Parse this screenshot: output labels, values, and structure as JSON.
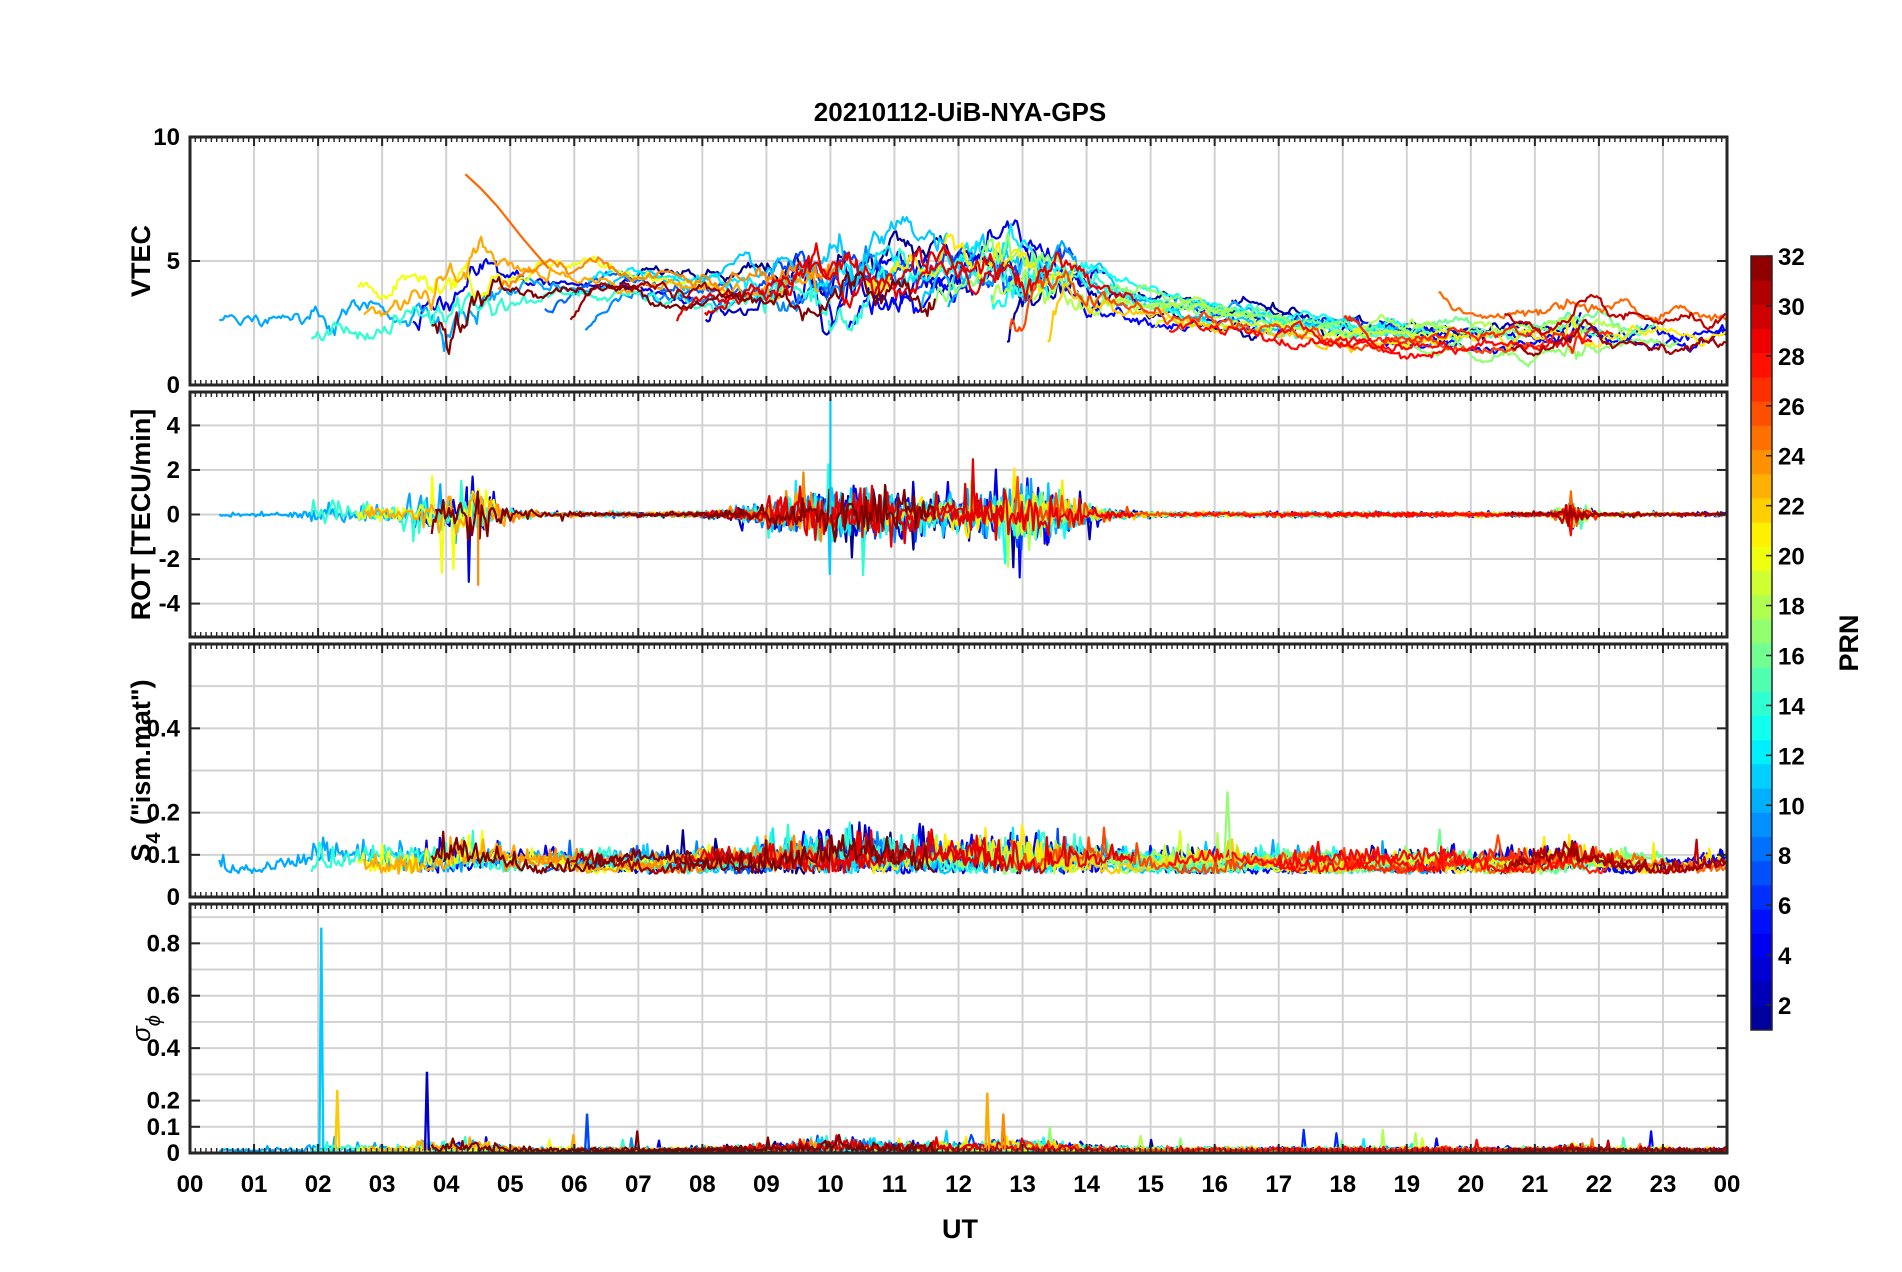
{
  "chart_data": {
    "type": "line",
    "title": "20210112-UiB-NYA-GPS",
    "xlabel": "UT",
    "x_tick_labels": [
      "00",
      "01",
      "02",
      "03",
      "04",
      "05",
      "06",
      "07",
      "08",
      "09",
      "10",
      "11",
      "12",
      "13",
      "14",
      "15",
      "16",
      "17",
      "18",
      "19",
      "20",
      "21",
      "22",
      "23",
      "00"
    ],
    "xlim": [
      0,
      24
    ],
    "colormap": "jet",
    "colorbar": {
      "label": "PRN",
      "range": [
        1,
        32
      ],
      "tick_labels": [
        "2",
        "4",
        "6",
        "8",
        "10",
        "12",
        "14",
        "16",
        "18",
        "20",
        "22",
        "24",
        "26",
        "28",
        "30",
        "32"
      ],
      "colors": [
        "#00008f",
        "#0000ff",
        "#0080ff",
        "#00ffff",
        "#80ff80",
        "#ffff00",
        "#ff8000",
        "#ff0000",
        "#800000"
      ]
    },
    "grid": true,
    "panels": [
      {
        "ylabel": "VTEC",
        "ylim": [
          0,
          10
        ],
        "y_tick_labels": [
          "0",
          "5",
          "10"
        ],
        "description_values": {
          "typical_range": [
            1,
            5
          ],
          "peak_value": 8.5,
          "peak_time_ut": 4.3
        }
      },
      {
        "ylabel": "ROT [TECU/min]",
        "ylim": [
          -5.5,
          5.5
        ],
        "y_tick_labels": [
          "-4",
          "-2",
          "0",
          "2",
          "4"
        ],
        "description_values": {
          "typical_range": [
            -0.5,
            0.5
          ],
          "max_value": 5.2,
          "max_time_ut": 10.0,
          "min_value": -3.2,
          "min_time_ut": 4.5
        }
      },
      {
        "ylabel_main": "S",
        "ylabel_sub": "4",
        "ylabel_rest": " (\"ism.mat\")",
        "ylim": [
          0,
          0.6
        ],
        "y_tick_labels": [
          "0",
          "0.1",
          "0.2",
          "0.4"
        ],
        "description_values": {
          "typical_range": [
            0.04,
            0.12
          ],
          "max_value": 0.25,
          "max_time_ut": 16.2
        }
      },
      {
        "ylabel_main": "σ",
        "ylabel_sub": "ϕ",
        "ylim": [
          0,
          0.95
        ],
        "y_tick_labels": [
          "0",
          "0.1",
          "0.2",
          "0.4",
          "0.6",
          "0.8"
        ],
        "description_values": {
          "typical_range": [
            0,
            0.03
          ],
          "spikes": [
            {
              "time_ut": 2.05,
              "value": 0.86,
              "prn": 11
            },
            {
              "time_ut": 2.3,
              "value": 0.24,
              "prn": 22
            },
            {
              "time_ut": 3.7,
              "value": 0.31,
              "prn": 3
            },
            {
              "time_ut": 6.2,
              "value": 0.15,
              "prn": 7
            },
            {
              "time_ut": 12.45,
              "value": 0.23,
              "prn": 23
            },
            {
              "time_ut": 12.7,
              "value": 0.15,
              "prn": 24
            }
          ]
        }
      }
    ],
    "series_note_prns": [
      1,
      2,
      3,
      4,
      5,
      6,
      7,
      8,
      9,
      10,
      11,
      12,
      13,
      14,
      15,
      16,
      17,
      18,
      19,
      20,
      21,
      22,
      23,
      24,
      25,
      26,
      27,
      28,
      29,
      30,
      31,
      32
    ]
  }
}
